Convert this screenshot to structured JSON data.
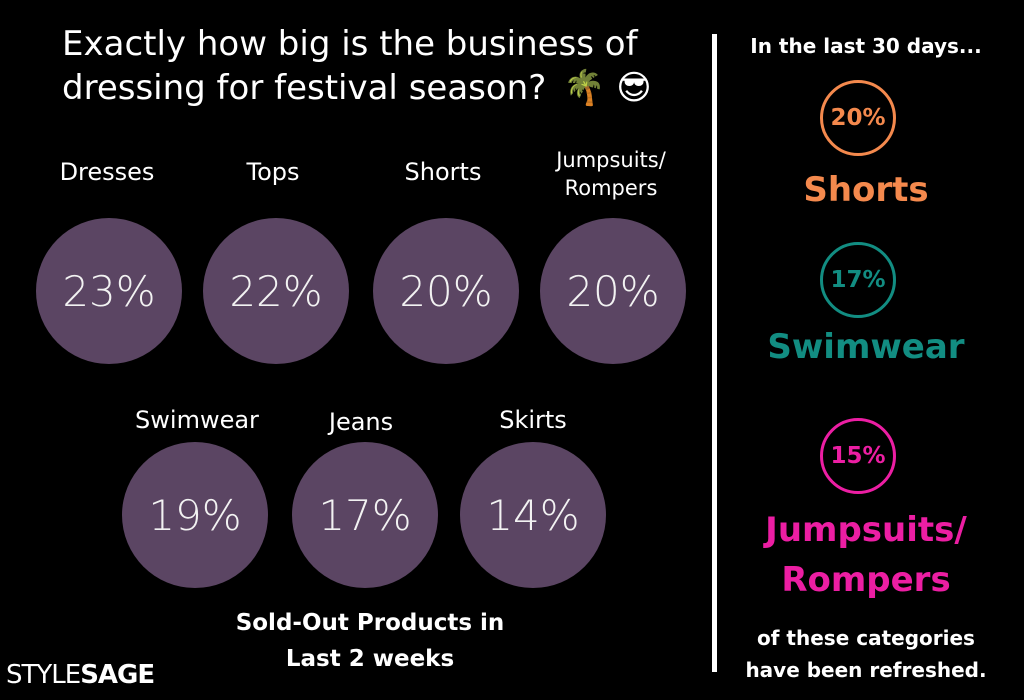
{
  "title": "Exactly how big is the business of dressing for festival season?",
  "title_emoji": "🌴 😎",
  "bubble_color": "#5b4563",
  "categories": [
    {
      "label": "Dresses",
      "value": "23%"
    },
    {
      "label": "Tops",
      "value": "22%"
    },
    {
      "label": "Shorts",
      "value": "20%"
    },
    {
      "label": "Jumpsuits/\nRompers",
      "value": "20%"
    },
    {
      "label": "Swimwear",
      "value": "19%"
    },
    {
      "label": "Jeans",
      "value": "17%"
    },
    {
      "label": "Skirts",
      "value": "14%"
    }
  ],
  "caption": "Sold-Out Products in\nLast 2 weeks",
  "right_panel": {
    "heading": "In the last 30 days...",
    "items": [
      {
        "value": "20%",
        "label": "Shorts",
        "color": "#f4894d"
      },
      {
        "value": "17%",
        "label": "Swimwear",
        "color": "#128d82"
      },
      {
        "value": "15%",
        "label": "Jumpsuits/\nRompers",
        "color": "#ec1ea3"
      }
    ],
    "footnote": "of these categories\nhave been refreshed."
  },
  "logo": {
    "part1": "STYLE",
    "part2": "SAGE"
  }
}
